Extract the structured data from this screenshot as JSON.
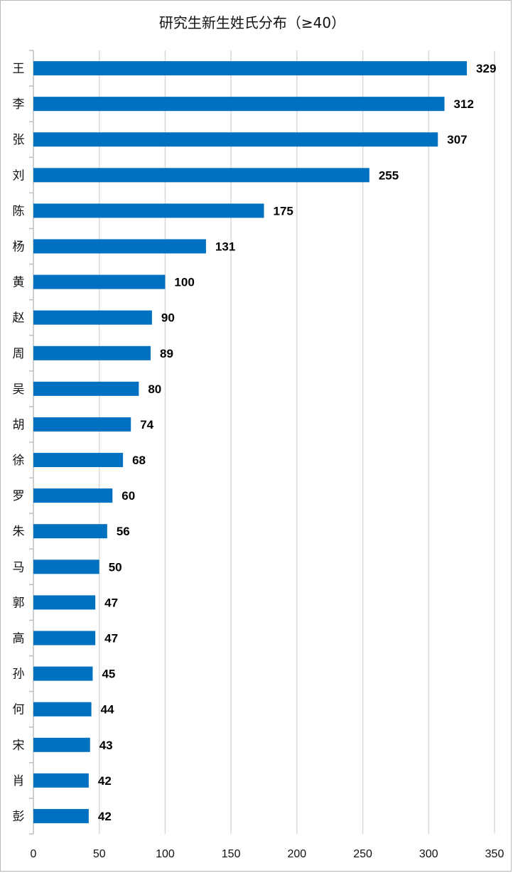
{
  "chart_data": {
    "type": "bar",
    "orientation": "horizontal",
    "title": "研究生新生姓氏分布（≥40）",
    "categories": [
      "王",
      "李",
      "张",
      "刘",
      "陈",
      "杨",
      "黄",
      "赵",
      "周",
      "吴",
      "胡",
      "徐",
      "罗",
      "朱",
      "马",
      "郭",
      "高",
      "孙",
      "何",
      "宋",
      "肖",
      "彭"
    ],
    "values": [
      329,
      312,
      307,
      255,
      175,
      131,
      100,
      90,
      89,
      80,
      74,
      68,
      60,
      56,
      50,
      47,
      47,
      45,
      44,
      43,
      42,
      42
    ],
    "xlim": [
      0,
      350
    ],
    "xticks": [
      0,
      50,
      100,
      150,
      200,
      250,
      300,
      350
    ],
    "xlabel": "",
    "ylabel": "",
    "grid": "vertical",
    "legend": "none",
    "data_labels": true,
    "colors": {
      "bar": "#0070c0",
      "grid": "#d9d9d9",
      "axis": "#bfbfbf",
      "text": "#111111",
      "border": "#b7b7b7"
    }
  }
}
